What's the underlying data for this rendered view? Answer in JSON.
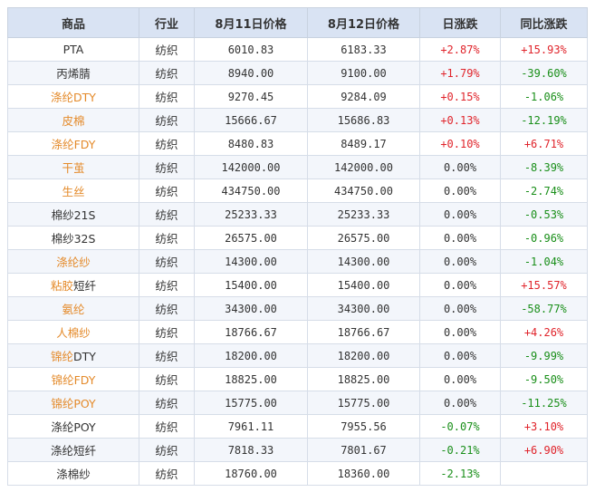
{
  "headers": [
    "商品",
    "行业",
    "8月11日价格",
    "8月12日价格",
    "日涨跌",
    "同比涨跌"
  ],
  "colors": {
    "orange": "#e48a2a",
    "up": "#e0242b",
    "down": "#1a8f1a",
    "header_bg": "#d9e3f3"
  },
  "rows": [
    {
      "name": "PTA",
      "name_color": "plain",
      "industry": "纺织",
      "p1": "6010.83",
      "p2": "6183.33",
      "day": "+2.87%",
      "day_dir": "up",
      "yoy": "+15.93%",
      "yoy_dir": "up"
    },
    {
      "name": "丙烯腈",
      "name_color": "plain",
      "industry": "纺织",
      "p1": "8940.00",
      "p2": "9100.00",
      "day": "+1.79%",
      "day_dir": "up",
      "yoy": "-39.60%",
      "yoy_dir": "down"
    },
    {
      "name": "涤纶DTY",
      "name_color": "orange",
      "industry": "纺织",
      "p1": "9270.45",
      "p2": "9284.09",
      "day": "+0.15%",
      "day_dir": "up",
      "yoy": "-1.06%",
      "yoy_dir": "down"
    },
    {
      "name": "皮棉",
      "name_color": "orange",
      "industry": "纺织",
      "p1": "15666.67",
      "p2": "15686.83",
      "day": "+0.13%",
      "day_dir": "up",
      "yoy": "-12.19%",
      "yoy_dir": "down"
    },
    {
      "name": "涤纶FDY",
      "name_color": "orange",
      "industry": "纺织",
      "p1": "8480.83",
      "p2": "8489.17",
      "day": "+0.10%",
      "day_dir": "up",
      "yoy": "+6.71%",
      "yoy_dir": "up"
    },
    {
      "name": "干茧",
      "name_color": "orange",
      "industry": "纺织",
      "p1": "142000.00",
      "p2": "142000.00",
      "day": "0.00%",
      "day_dir": "flat",
      "yoy": "-8.39%",
      "yoy_dir": "down"
    },
    {
      "name": "生丝",
      "name_color": "orange",
      "industry": "纺织",
      "p1": "434750.00",
      "p2": "434750.00",
      "day": "0.00%",
      "day_dir": "flat",
      "yoy": "-2.74%",
      "yoy_dir": "down"
    },
    {
      "name": "棉纱21S",
      "name_color": "plain",
      "industry": "纺织",
      "p1": "25233.33",
      "p2": "25233.33",
      "day": "0.00%",
      "day_dir": "flat",
      "yoy": "-0.53%",
      "yoy_dir": "down"
    },
    {
      "name": "棉纱32S",
      "name_color": "plain",
      "industry": "纺织",
      "p1": "26575.00",
      "p2": "26575.00",
      "day": "0.00%",
      "day_dir": "flat",
      "yoy": "-0.96%",
      "yoy_dir": "down"
    },
    {
      "name": "涤纶纱",
      "name_color": "orange",
      "industry": "纺织",
      "p1": "14300.00",
      "p2": "14300.00",
      "day": "0.00%",
      "day_dir": "flat",
      "yoy": "-1.04%",
      "yoy_dir": "down"
    },
    {
      "name": "粘胶短纤",
      "name_color": "mixed",
      "name_a": "粘胶",
      "name_b": "短纤",
      "industry": "纺织",
      "p1": "15400.00",
      "p2": "15400.00",
      "day": "0.00%",
      "day_dir": "flat",
      "yoy": "+15.57%",
      "yoy_dir": "up"
    },
    {
      "name": "氨纶",
      "name_color": "orange",
      "industry": "纺织",
      "p1": "34300.00",
      "p2": "34300.00",
      "day": "0.00%",
      "day_dir": "flat",
      "yoy": "-58.77%",
      "yoy_dir": "down"
    },
    {
      "name": "人棉纱",
      "name_color": "orange",
      "industry": "纺织",
      "p1": "18766.67",
      "p2": "18766.67",
      "day": "0.00%",
      "day_dir": "flat",
      "yoy": "+4.26%",
      "yoy_dir": "up"
    },
    {
      "name": "锦纶DTY",
      "name_color": "mixed",
      "name_a": "锦纶",
      "name_b": "DTY",
      "industry": "纺织",
      "p1": "18200.00",
      "p2": "18200.00",
      "day": "0.00%",
      "day_dir": "flat",
      "yoy": "-9.99%",
      "yoy_dir": "down"
    },
    {
      "name": "锦纶FDY",
      "name_color": "orange",
      "industry": "纺织",
      "p1": "18825.00",
      "p2": "18825.00",
      "day": "0.00%",
      "day_dir": "flat",
      "yoy": "-9.50%",
      "yoy_dir": "down"
    },
    {
      "name": "锦纶POY",
      "name_color": "orange",
      "industry": "纺织",
      "p1": "15775.00",
      "p2": "15775.00",
      "day": "0.00%",
      "day_dir": "flat",
      "yoy": "-11.25%",
      "yoy_dir": "down"
    },
    {
      "name": "涤纶POY",
      "name_color": "plain",
      "industry": "纺织",
      "p1": "7961.11",
      "p2": "7955.56",
      "day": "-0.07%",
      "day_dir": "down",
      "yoy": "+3.10%",
      "yoy_dir": "up"
    },
    {
      "name": "涤纶短纤",
      "name_color": "plain",
      "industry": "纺织",
      "p1": "7818.33",
      "p2": "7801.67",
      "day": "-0.21%",
      "day_dir": "down",
      "yoy": "+6.90%",
      "yoy_dir": "up"
    },
    {
      "name": "涤棉纱",
      "name_color": "plain",
      "industry": "纺织",
      "p1": "18760.00",
      "p2": "18360.00",
      "day": "-2.13%",
      "day_dir": "down",
      "yoy": "",
      "yoy_dir": "flat"
    }
  ]
}
